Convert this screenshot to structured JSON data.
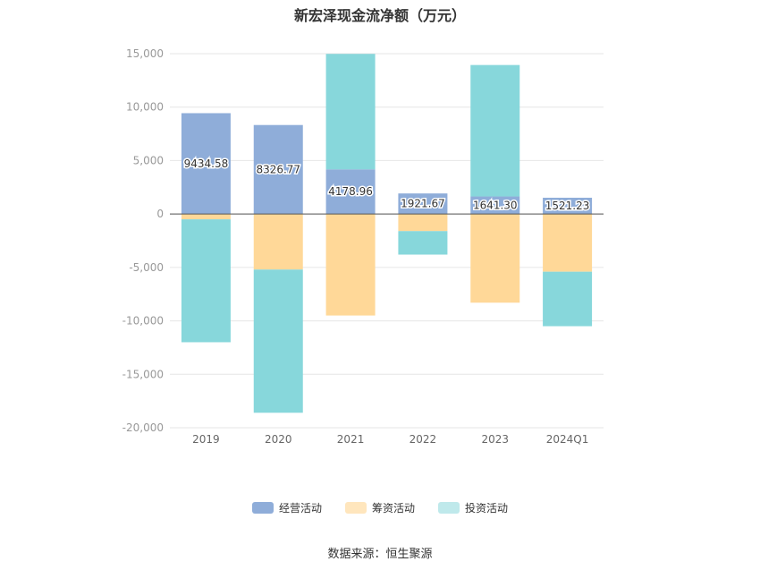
{
  "chart_data": {
    "type": "bar",
    "stacked": true,
    "title": "新宏泽现金流净额（万元）",
    "categories": [
      "2019",
      "2020",
      "2021",
      "2022",
      "2023",
      "2024Q1"
    ],
    "series": [
      {
        "name": "经营活动",
        "color": "#8fadd9",
        "values": [
          9434.58,
          8326.77,
          4178.96,
          1921.67,
          1641.3,
          1521.23
        ],
        "labels": [
          "9434.58",
          "8326.77",
          "4178.96",
          "1921.67",
          "1641.30",
          "1521.23"
        ]
      },
      {
        "name": "筹资活动",
        "color": "#ffd898",
        "values": [
          -500,
          -5200,
          -9500,
          -1600,
          -8300,
          -5400
        ]
      },
      {
        "name": "投资活动",
        "color": "#87d7db",
        "values": [
          -11500,
          -13400,
          10800,
          -2200,
          12300,
          -5100
        ]
      }
    ],
    "yticks": [
      "15,000",
      "10,000",
      "5,000",
      "0",
      "-5,000",
      "-10,000",
      "-15,000",
      "-20,000"
    ],
    "ylim": [
      -20000,
      15000
    ],
    "grid": true,
    "legend": "bottom"
  },
  "source": "数据来源：恒生聚源"
}
